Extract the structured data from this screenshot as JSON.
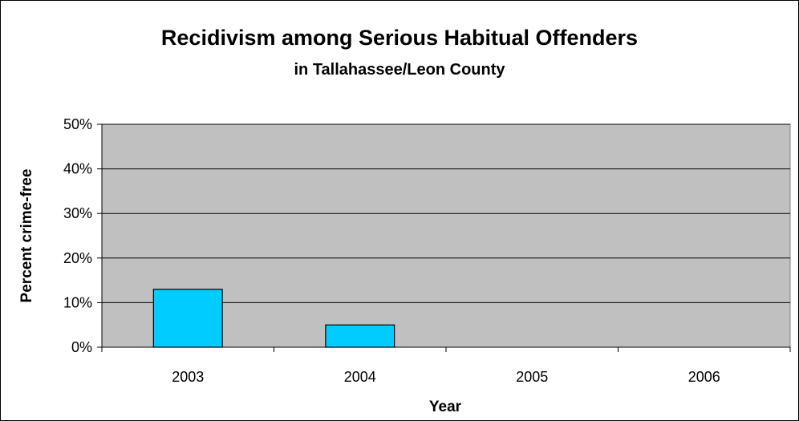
{
  "chart_data": {
    "type": "bar",
    "title": "Recidivism among Serious Habitual Offenders",
    "subtitle": "in Tallahassee/Leon County",
    "xlabel": "Year",
    "ylabel": "Percent crime-free",
    "categories": [
      "2003",
      "2004",
      "2005",
      "2006"
    ],
    "values": [
      13,
      5,
      0,
      0
    ],
    "ylim": [
      0,
      50
    ],
    "yticks": [
      0,
      10,
      20,
      30,
      40,
      50
    ],
    "ytick_labels": [
      "0%",
      "10%",
      "20%",
      "30%",
      "40%",
      "50%"
    ],
    "grid": true,
    "legend": "none"
  },
  "colors": {
    "plot_background": "#c0c0c0",
    "bar_fill": "#00ccff",
    "bar_stroke": "#000000",
    "gridline": "#000000"
  }
}
